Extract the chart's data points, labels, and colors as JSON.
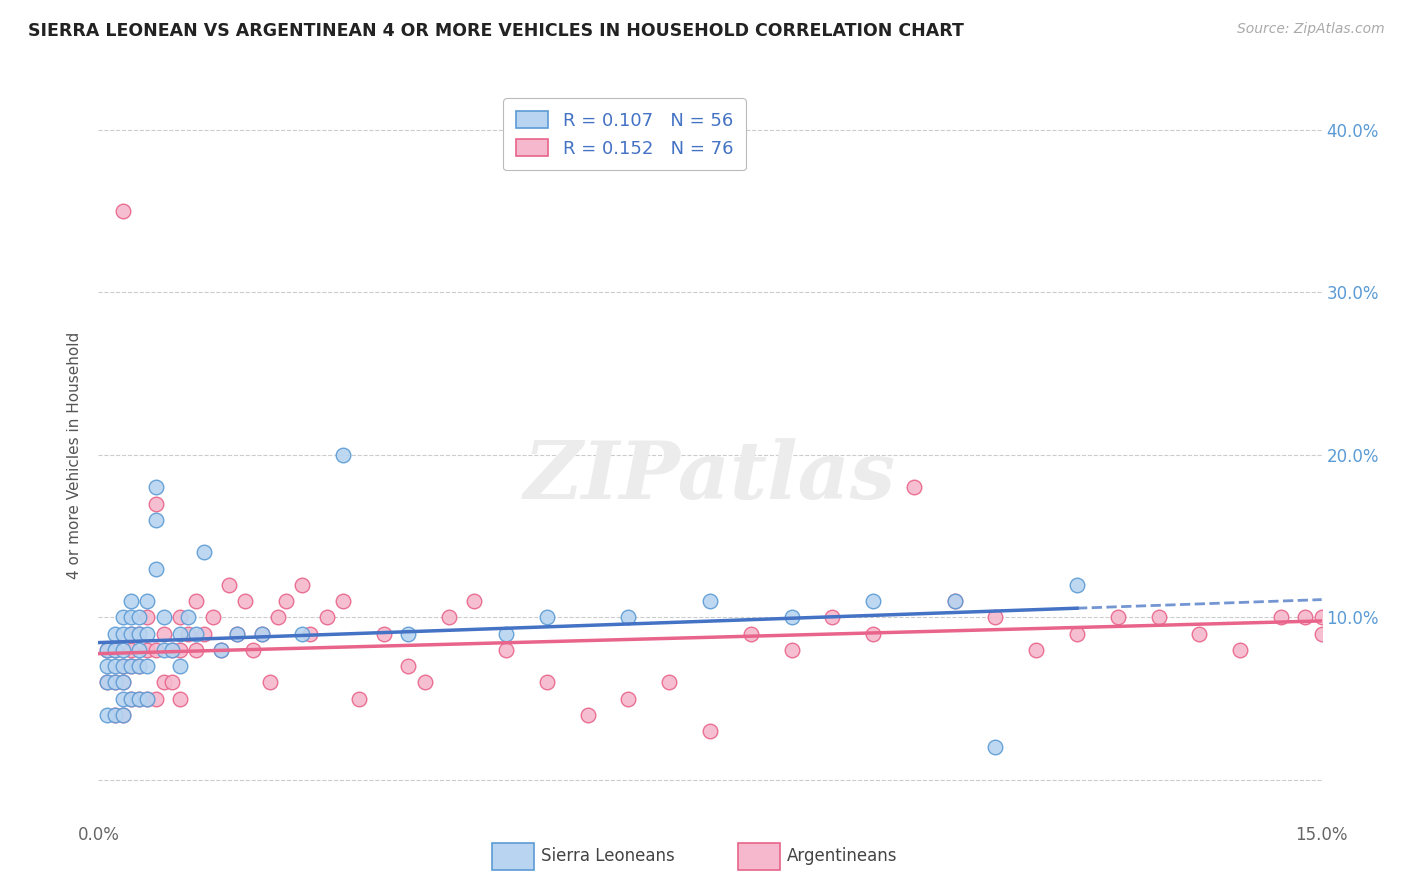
{
  "title": "SIERRA LEONEAN VS ARGENTINEAN 4 OR MORE VEHICLES IN HOUSEHOLD CORRELATION CHART",
  "source": "Source: ZipAtlas.com",
  "ylabel": "4 or more Vehicles in Household",
  "xlim": [
    0.0,
    0.15
  ],
  "ylim": [
    -0.025,
    0.425
  ],
  "sl_color_fill": "#b8d4f0",
  "sl_color_edge": "#5b9bd5",
  "arg_color_fill": "#f5b8cc",
  "arg_color_edge": "#e8648a",
  "trend_sl_color": "#4472c4",
  "trend_arg_color": "#e8648a",
  "watermark": "ZIPatlas",
  "legend_label_sl": "R = 0.107   N = 56",
  "legend_label_arg": "R = 0.152   N = 76",
  "bottom_label_sl": "Sierra Leoneans",
  "bottom_label_arg": "Argentineans",
  "sl_x": [
    0.001,
    0.001,
    0.001,
    0.001,
    0.002,
    0.002,
    0.002,
    0.002,
    0.002,
    0.003,
    0.003,
    0.003,
    0.003,
    0.003,
    0.003,
    0.003,
    0.004,
    0.004,
    0.004,
    0.004,
    0.004,
    0.005,
    0.005,
    0.005,
    0.005,
    0.005,
    0.006,
    0.006,
    0.006,
    0.006,
    0.007,
    0.007,
    0.007,
    0.008,
    0.008,
    0.009,
    0.01,
    0.01,
    0.011,
    0.012,
    0.013,
    0.015,
    0.017,
    0.02,
    0.025,
    0.03,
    0.038,
    0.05,
    0.055,
    0.065,
    0.075,
    0.085,
    0.095,
    0.105,
    0.11,
    0.12
  ],
  "sl_y": [
    0.04,
    0.06,
    0.07,
    0.08,
    0.04,
    0.06,
    0.07,
    0.08,
    0.09,
    0.04,
    0.05,
    0.06,
    0.07,
    0.08,
    0.09,
    0.1,
    0.05,
    0.07,
    0.09,
    0.1,
    0.11,
    0.05,
    0.07,
    0.08,
    0.09,
    0.1,
    0.05,
    0.07,
    0.09,
    0.11,
    0.13,
    0.16,
    0.18,
    0.08,
    0.1,
    0.08,
    0.07,
    0.09,
    0.1,
    0.09,
    0.14,
    0.08,
    0.09,
    0.09,
    0.09,
    0.2,
    0.09,
    0.09,
    0.1,
    0.1,
    0.11,
    0.1,
    0.11,
    0.11,
    0.02,
    0.12
  ],
  "arg_x": [
    0.001,
    0.001,
    0.002,
    0.002,
    0.002,
    0.003,
    0.003,
    0.003,
    0.003,
    0.004,
    0.004,
    0.004,
    0.004,
    0.005,
    0.005,
    0.005,
    0.006,
    0.006,
    0.006,
    0.007,
    0.007,
    0.007,
    0.008,
    0.008,
    0.009,
    0.009,
    0.01,
    0.01,
    0.01,
    0.011,
    0.012,
    0.012,
    0.013,
    0.014,
    0.015,
    0.016,
    0.017,
    0.018,
    0.019,
    0.02,
    0.021,
    0.022,
    0.023,
    0.025,
    0.026,
    0.028,
    0.03,
    0.032,
    0.035,
    0.038,
    0.04,
    0.043,
    0.046,
    0.05,
    0.055,
    0.06,
    0.065,
    0.07,
    0.075,
    0.08,
    0.085,
    0.09,
    0.095,
    0.1,
    0.105,
    0.11,
    0.115,
    0.12,
    0.125,
    0.13,
    0.135,
    0.14,
    0.145,
    0.148,
    0.15,
    0.15
  ],
  "arg_y": [
    0.06,
    0.08,
    0.04,
    0.06,
    0.08,
    0.04,
    0.06,
    0.07,
    0.35,
    0.05,
    0.07,
    0.08,
    0.09,
    0.05,
    0.07,
    0.09,
    0.05,
    0.08,
    0.1,
    0.05,
    0.08,
    0.17,
    0.06,
    0.09,
    0.06,
    0.08,
    0.05,
    0.08,
    0.1,
    0.09,
    0.08,
    0.11,
    0.09,
    0.1,
    0.08,
    0.12,
    0.09,
    0.11,
    0.08,
    0.09,
    0.06,
    0.1,
    0.11,
    0.12,
    0.09,
    0.1,
    0.11,
    0.05,
    0.09,
    0.07,
    0.06,
    0.1,
    0.11,
    0.08,
    0.06,
    0.04,
    0.05,
    0.06,
    0.03,
    0.09,
    0.08,
    0.1,
    0.09,
    0.18,
    0.11,
    0.1,
    0.08,
    0.09,
    0.1,
    0.1,
    0.09,
    0.08,
    0.1,
    0.1,
    0.09,
    0.1
  ]
}
